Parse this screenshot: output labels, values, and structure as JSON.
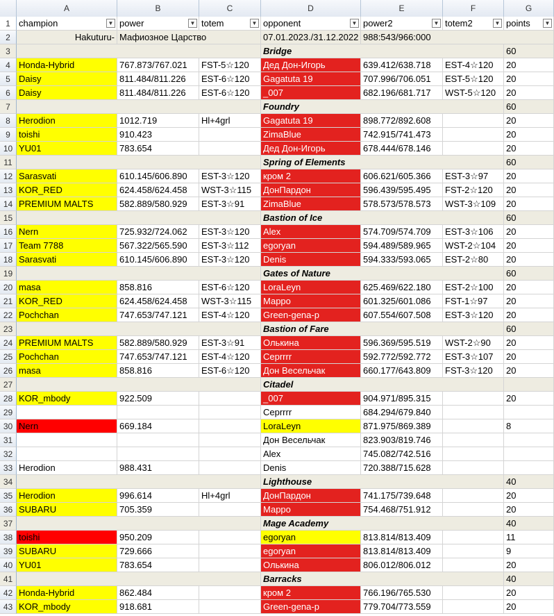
{
  "columns": [
    "A",
    "B",
    "C",
    "D",
    "E",
    "F",
    "G"
  ],
  "headers": [
    "champion",
    "power",
    "totem",
    "opponent",
    "power2",
    "totem2",
    "points"
  ],
  "filter_icon": "dropdown-arrow-icon",
  "info_row": {
    "row": "2",
    "a": "Hakuturu-",
    "b": "Мафиозное Царство",
    "d": "07.01.2023./31.12.2022",
    "e": "988:543/966:000"
  },
  "colors": {
    "highlight_yellow": "#ffff00",
    "highlight_red": "#e3221f",
    "section_band": "#eeece1"
  },
  "rows": [
    {
      "n": "3",
      "section": "Bridge",
      "points": "60"
    },
    {
      "n": "4",
      "a": "Honda-Hybrid",
      "b": "767.873/767.021",
      "c": "FST-5☆120",
      "d": "Дед Дон-Игорь",
      "e": "639.412/638.718",
      "f": "EST-4☆120",
      "g": "20",
      "ac": "yel",
      "dc": "red"
    },
    {
      "n": "5",
      "a": "Daisy",
      "b": "811.484/811.226",
      "c": "EST-6☆120",
      "d": "Gagatuta 19",
      "e": "707.996/706.051",
      "f": "EST-5☆120",
      "g": "20",
      "ac": "yel",
      "dc": "red"
    },
    {
      "n": "6",
      "a": "Daisy",
      "b": "811.484/811.226",
      "c": "EST-6☆120",
      "d": "_007",
      "e": "682.196/681.717",
      "f": "WST-5☆120",
      "g": "20",
      "ac": "yel",
      "dc": "red"
    },
    {
      "n": "7",
      "section": "Foundry",
      "points": "60"
    },
    {
      "n": "8",
      "a": "Herodion",
      "b": "1012.719",
      "c": "Hl+4grl",
      "d": "Gagatuta 19",
      "e": "898.772/892.608",
      "f": "",
      "g": "20",
      "ac": "yel",
      "dc": "red"
    },
    {
      "n": "9",
      "a": "toishi",
      "b": "910.423",
      "c": "",
      "d": "ZimaBlue",
      "e": "742.915/741.473",
      "f": "",
      "g": "20",
      "ac": "yel",
      "dc": "red"
    },
    {
      "n": "10",
      "a": "YU01",
      "b": "783.654",
      "c": "",
      "d": "Дед Дон-Игорь",
      "e": "678.444/678.146",
      "f": "",
      "g": "20",
      "ac": "yel",
      "dc": "red"
    },
    {
      "n": "11",
      "section": "Spring of Elements",
      "points": "60"
    },
    {
      "n": "12",
      "a": "Sarasvati",
      "b": "610.145/606.890",
      "c": "EST-3☆120",
      "d": "кром 2",
      "e": "606.621/605.366",
      "f": "EST-3☆97",
      "g": "20",
      "ac": "yel",
      "dc": "red"
    },
    {
      "n": "13",
      "a": "KOR_RED",
      "b": "624.458/624.458",
      "c": "WST-3☆115",
      "d": "ДонПардон",
      "e": "596.439/595.495",
      "f": "FST-2☆120",
      "g": "20",
      "ac": "yel",
      "dc": "red"
    },
    {
      "n": "14",
      "a": "PREMIUM MALTS",
      "b": "582.889/580.929",
      "c": "EST-3☆91",
      "d": "ZimaBlue",
      "e": "578.573/578.573",
      "f": "WST-3☆109",
      "g": "20",
      "ac": "yel",
      "dc": "red"
    },
    {
      "n": "15",
      "section": "Bastion of Ice",
      "points": "60"
    },
    {
      "n": "16",
      "a": "Nern",
      "b": "725.932/724.062",
      "c": "EST-3☆120",
      "d": "Alex",
      "e": "574.709/574.709",
      "f": "EST-3☆106",
      "g": "20",
      "ac": "yel",
      "dc": "red"
    },
    {
      "n": "17",
      "a": "Team 7788",
      "b": "567.322/565.590",
      "c": "EST-3☆112",
      "d": "egoryan",
      "e": "594.489/589.965",
      "f": "WST-2☆104",
      "g": "20",
      "ac": "yel",
      "dc": "red"
    },
    {
      "n": "18",
      "a": "Sarasvati",
      "b": "610.145/606.890",
      "c": "EST-3☆120",
      "d": "Denis",
      "e": "594.333/593.065",
      "f": "EST-2☆80",
      "g": "20",
      "ac": "yel",
      "dc": "red"
    },
    {
      "n": "19",
      "section": "Gates of Nature",
      "points": "60"
    },
    {
      "n": "20",
      "a": "masa",
      "b": "858.816",
      "c": "EST-6☆120",
      "d": "LoraLeyn",
      "e": "625.469/622.180",
      "f": "EST-2☆100",
      "g": "20",
      "ac": "yel",
      "dc": "red"
    },
    {
      "n": "21",
      "a": "KOR_RED",
      "b": "624.458/624.458",
      "c": "WST-3☆115",
      "d": "Марро",
      "e": "601.325/601.086",
      "f": "FST-1☆97",
      "g": "20",
      "ac": "yel",
      "dc": "red"
    },
    {
      "n": "22",
      "a": "Pochchan",
      "b": "747.653/747.121",
      "c": "EST-4☆120",
      "d": "Green-gena-p",
      "e": "607.554/607.508",
      "f": "EST-3☆120",
      "g": "20",
      "ac": "yel",
      "dc": "red"
    },
    {
      "n": "23",
      "section": "Bastion of Fare",
      "points": "60"
    },
    {
      "n": "24",
      "a": "PREMIUM MALTS",
      "b": "582.889/580.929",
      "c": "EST-3☆91",
      "d": "Олькина",
      "e": "596.369/595.519",
      "f": "WST-2☆90",
      "g": "20",
      "ac": "yel",
      "dc": "red"
    },
    {
      "n": "25",
      "a": "Pochchan",
      "b": "747.653/747.121",
      "c": "EST-4☆120",
      "d": "Серrrrr",
      "e": "592.772/592.772",
      "f": "EST-3☆107",
      "g": "20",
      "ac": "yel",
      "dc": "red"
    },
    {
      "n": "26",
      "a": "masa",
      "b": "858.816",
      "c": "EST-6☆120",
      "d": "Дон Весельчак",
      "e": "660.177/643.809",
      "f": "FST-3☆120",
      "g": "20",
      "ac": "yel",
      "dc": "red"
    },
    {
      "n": "27",
      "section": "Citadel",
      "points": ""
    },
    {
      "n": "28",
      "a": "KOR_mbody",
      "b": "922.509",
      "c": "",
      "d": "_007",
      "e": "904.971/895.315",
      "f": "",
      "g": "20",
      "ac": "yel",
      "dc": "red"
    },
    {
      "n": "29",
      "a": "",
      "b": "",
      "c": "",
      "d": "Серrrrr",
      "e": "684.294/679.840",
      "f": "",
      "g": "",
      "ac": "",
      "dc": ""
    },
    {
      "n": "30",
      "a": "Nern",
      "b": "669.184",
      "c": "",
      "d": "LoraLeyn",
      "e": "871.975/869.389",
      "f": "",
      "g": "8",
      "ac": "red",
      "dc": "yel"
    },
    {
      "n": "31",
      "a": "",
      "b": "",
      "c": "",
      "d": "Дон Весельчак",
      "e": "823.903/819.746",
      "f": "",
      "g": "",
      "ac": "",
      "dc": ""
    },
    {
      "n": "32",
      "a": "",
      "b": "",
      "c": "",
      "d": "Alex",
      "e": "745.082/742.516",
      "f": "",
      "g": "",
      "ac": "",
      "dc": ""
    },
    {
      "n": "33",
      "a": "Herodion",
      "b": "988.431",
      "c": "",
      "d": "Denis",
      "e": "720.388/715.628",
      "f": "",
      "g": "",
      "ac": "",
      "dc": ""
    },
    {
      "n": "34",
      "section": "Lighthouse",
      "points": "40"
    },
    {
      "n": "35",
      "a": "Herodion",
      "b": "996.614",
      "c": "Hl+4grl",
      "d": "ДонПардон",
      "e": "741.175/739.648",
      "f": "",
      "g": "20",
      "ac": "yel",
      "dc": "red"
    },
    {
      "n": "36",
      "a": "SUBARU",
      "b": "705.359",
      "c": "",
      "d": "Марро",
      "e": "754.468/751.912",
      "f": "",
      "g": "20",
      "ac": "yel",
      "dc": "red"
    },
    {
      "n": "37",
      "section": "Mage Academy",
      "points": "40"
    },
    {
      "n": "38",
      "a": "toishi",
      "b": "950.209",
      "c": "",
      "d": "egoryan",
      "e": "813.814/813.409",
      "f": "",
      "g": "11",
      "ac": "red",
      "dc": "yel"
    },
    {
      "n": "39",
      "a": "SUBARU",
      "b": "729.666",
      "c": "",
      "d": "egoryan",
      "e": "813.814/813.409",
      "f": "",
      "g": "9",
      "ac": "yel",
      "dc": "red"
    },
    {
      "n": "40",
      "a": "YU01",
      "b": "783.654",
      "c": "",
      "d": "Олькина",
      "e": "806.012/806.012",
      "f": "",
      "g": "20",
      "ac": "yel",
      "dc": "red"
    },
    {
      "n": "41",
      "section": "Barracks",
      "points": "40"
    },
    {
      "n": "42",
      "a": "Honda-Hybrid",
      "b": "862.484",
      "c": "",
      "d": "кром 2",
      "e": "766.196/765.530",
      "f": "",
      "g": "20",
      "ac": "yel",
      "dc": "red"
    },
    {
      "n": "43",
      "a": "KOR_mbody",
      "b": "918.681",
      "c": "",
      "d": "Green-gena-p",
      "e": "779.704/773.559",
      "f": "",
      "g": "20",
      "ac": "yel",
      "dc": "red"
    }
  ]
}
